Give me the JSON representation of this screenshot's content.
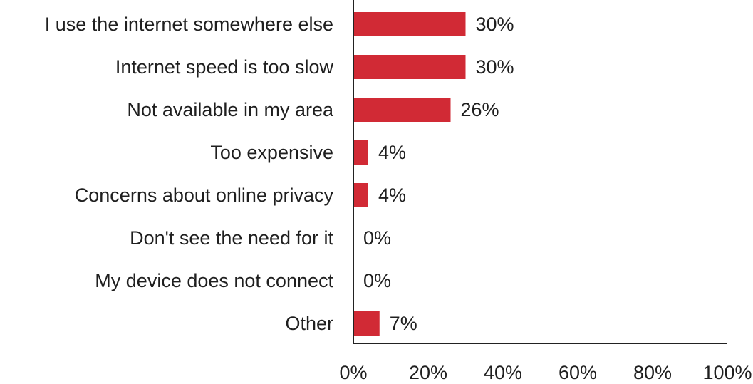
{
  "chart_data": {
    "type": "bar",
    "orientation": "horizontal",
    "categories": [
      "I use the internet somewhere else",
      "Internet speed is too slow",
      "Not available in my area",
      "Too expensive",
      "Concerns about online privacy",
      "Don't see the need for it",
      "My device does not connect",
      "Other"
    ],
    "values": [
      30,
      30,
      26,
      4,
      4,
      0,
      0,
      7
    ],
    "value_labels": [
      "30%",
      "30%",
      "26%",
      "4%",
      "4%",
      "0%",
      "0%",
      "7%"
    ],
    "x_ticks": [
      0,
      20,
      40,
      60,
      80,
      100
    ],
    "x_tick_labels": [
      "0%",
      "20%",
      "40%",
      "60%",
      "80%",
      "100%"
    ],
    "xlim": [
      0,
      100
    ],
    "grid": false,
    "bar_color": "#d12a35"
  }
}
